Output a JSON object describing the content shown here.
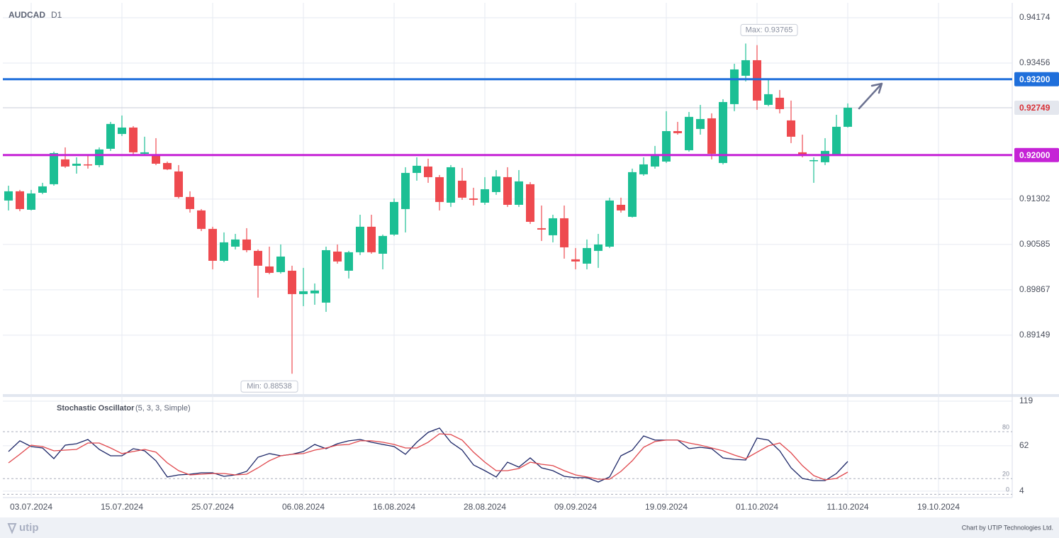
{
  "chart_data": [
    {
      "type": "candlestick",
      "title": "AUDCAD",
      "subtitle": "D1",
      "categories": [
        null,
        null,
        "03.07.2024",
        null,
        null,
        null,
        null,
        null,
        null,
        null,
        "15.07.2024",
        null,
        null,
        null,
        null,
        null,
        null,
        null,
        "25.07.2024",
        null,
        null,
        null,
        null,
        null,
        null,
        null,
        "06.08.2024",
        null,
        null,
        null,
        null,
        null,
        null,
        null,
        "16.08.2024",
        null,
        null,
        null,
        null,
        null,
        null,
        null,
        "28.08.2024",
        null,
        null,
        null,
        null,
        null,
        null,
        null,
        "09.09.2024",
        null,
        null,
        null,
        null,
        null,
        null,
        null,
        "19.09.2024",
        null,
        null,
        null,
        null,
        null,
        null,
        null,
        "01.10.2024",
        null,
        null,
        null,
        null,
        null,
        null,
        null,
        "11.10.2024",
        null,
        null,
        null,
        null,
        null,
        null,
        null,
        "19.10.2024",
        null,
        null,
        null,
        null,
        null,
        null
      ],
      "open": [
        0.9128,
        0.91426,
        0.91134,
        0.91403,
        0.91538,
        0.91931,
        0.9183,
        0.91852,
        0.91841,
        0.92099,
        0.92334,
        0.92435,
        0.9202,
        0.92009,
        0.91874,
        0.9174,
        0.91336,
        0.91123,
        0.90831,
        0.90326,
        0.9055,
        0.90663,
        0.90483,
        0.90236,
        0.90147,
        0.90169,
        0.89799,
        0.8981,
        0.89664,
        0.90472,
        0.90169,
        0.90461,
        0.90865,
        0.90438,
        0.90741,
        0.91145,
        0.91717,
        0.91818,
        0.9165,
        0.91246,
        0.91594,
        0.91313,
        0.91246,
        0.91414,
        0.9165,
        0.91212,
        0.91538,
        0.90842,
        0.9073,
        0.90999,
        0.90349,
        0.90281,
        0.90483,
        0.9055,
        0.91212,
        0.91022,
        0.91695,
        0.91818,
        0.91897,
        0.92379,
        0.92076,
        0.92413,
        0.92581,
        0.91874,
        0.92806,
        0.93255,
        0.93501,
        0.92794,
        0.92907,
        0.92548,
        0.92043,
        0.91908,
        0.91886,
        0.92009,
        0.92447,
        null,
        null,
        null,
        null,
        null,
        null,
        null,
        null,
        null,
        null,
        null,
        null,
        null,
        null
      ],
      "high": [
        0.91515,
        0.91448,
        0.91448,
        0.9156,
        0.92054,
        0.92121,
        0.91964,
        0.92009,
        0.92121,
        0.92525,
        0.92626,
        0.92458,
        0.9229,
        0.92267,
        0.91897,
        0.91841,
        0.91426,
        0.91145,
        0.90865,
        0.90775,
        0.90752,
        0.90842,
        0.90506,
        0.9055,
        0.90584,
        0.90248,
        0.90214,
        0.89967,
        0.9055,
        0.90584,
        0.90483,
        0.91055,
        0.91055,
        0.90741,
        0.91313,
        0.91807,
        0.91964,
        0.91942,
        0.91684,
        0.91841,
        0.91796,
        0.91482,
        0.9165,
        0.91762,
        0.91807,
        0.91762,
        0.91572,
        0.91201,
        0.91055,
        0.91201,
        0.90528,
        0.90663,
        0.90752,
        0.91325,
        0.91325,
        0.91785,
        0.91964,
        0.92144,
        0.92694,
        0.92525,
        0.92682,
        0.92794,
        0.9266,
        0.92884,
        0.93445,
        0.93765,
        0.9374,
        0.93198,
        0.9303,
        0.92862,
        0.92323,
        0.91964,
        0.92267,
        0.92637,
        0.92817,
        null,
        null,
        null,
        null,
        null,
        null,
        null,
        null,
        null,
        null,
        null,
        null,
        null,
        null
      ],
      "low": [
        0.91123,
        0.91111,
        0.91123,
        0.91381,
        0.91515,
        0.91796,
        0.91706,
        0.91785,
        0.91807,
        0.92065,
        0.92301,
        0.92009,
        0.92009,
        0.91841,
        0.91762,
        0.91313,
        0.91089,
        0.90797,
        0.90191,
        0.90304,
        0.90506,
        0.90461,
        0.89743,
        0.90113,
        0.90124,
        0.88538,
        0.89608,
        0.8963,
        0.89518,
        0.90281,
        0.90046,
        0.90416,
        0.90438,
        0.90191,
        0.90719,
        0.90775,
        0.91594,
        0.9156,
        0.91123,
        0.91179,
        0.91291,
        0.91201,
        0.91212,
        0.9137,
        0.91179,
        0.91179,
        0.9091,
        0.9064,
        0.90618,
        0.9036,
        0.90191,
        0.90191,
        0.90214,
        0.90528,
        0.91089,
        0.91011,
        0.91672,
        0.91785,
        0.91874,
        0.92323,
        0.92054,
        0.92323,
        0.91931,
        0.91852,
        0.92694,
        0.93165,
        0.92716,
        0.92772,
        0.9266,
        0.92189,
        0.91964,
        0.9156,
        0.91841,
        0.91987,
        0.92435,
        null,
        null,
        null,
        null,
        null,
        null,
        null,
        null,
        null,
        null,
        null,
        null,
        null,
        null
      ],
      "close": [
        0.91426,
        0.91145,
        0.91392,
        0.91504,
        0.92031,
        0.91818,
        0.91863,
        0.91841,
        0.92088,
        0.92492,
        0.92435,
        0.92043,
        0.92043,
        0.91863,
        0.91773,
        0.91336,
        0.91145,
        0.90831,
        0.90326,
        0.90618,
        0.90663,
        0.90494,
        0.90248,
        0.90135,
        0.90393,
        0.89799,
        0.89844,
        0.89855,
        0.90494,
        0.90315,
        0.90461,
        0.90865,
        0.90461,
        0.90719,
        0.91257,
        0.91717,
        0.9183,
        0.9165,
        0.91257,
        0.91807,
        0.91325,
        0.91291,
        0.91459,
        0.91661,
        0.91212,
        0.91583,
        0.90943,
        0.9082,
        0.90999,
        0.90539,
        0.90315,
        0.90528,
        0.90584,
        0.9128,
        0.91123,
        0.91729,
        0.91852,
        0.92009,
        0.92379,
        0.92346,
        0.92604,
        0.9257,
        0.9202,
        0.92839,
        0.93355,
        0.93501,
        0.92862,
        0.92963,
        0.92727,
        0.9229,
        0.92009,
        0.91919,
        0.92065,
        0.92447,
        0.92749,
        null,
        null,
        null,
        null,
        null,
        null,
        null,
        null,
        null,
        null,
        null,
        null,
        null,
        null
      ],
      "up_color": "#1cbf94",
      "down_color": "#ee4a4f",
      "ylim": [
        0.88227,
        0.94398
      ],
      "yticks": [
        0.94174,
        0.93456,
        0.91302,
        0.90585,
        0.89867,
        0.89149
      ],
      "grid": true,
      "levels": [
        {
          "value": 0.932,
          "label": "0.93200",
          "color": "#1f6fdb"
        },
        {
          "value": 0.92,
          "label": "0.92000",
          "color": "#c523d6"
        }
      ],
      "current_price": 0.92749,
      "max_label": "Max: 0.93765",
      "min_label": "Min: 0.88538"
    },
    {
      "type": "line",
      "title": "Stochastic Oscillator",
      "subtitle": "(5, 3, 3, Simple)",
      "series": [
        {
          "color": "#1b2566",
          "values": [
            54.7,
            68.3,
            61.0,
            59.2,
            45.6,
            62.8,
            64.6,
            70.1,
            57.4,
            49.2,
            49.2,
            58.3,
            55.6,
            42.9,
            22.1,
            24.8,
            25.7,
            27.5,
            27.5,
            23.0,
            24.8,
            29.3,
            47.4,
            52.0,
            49.2,
            51.1,
            54.7,
            63.7,
            58.3,
            64.6,
            68.3,
            70.1,
            66.5,
            63.7,
            61.0,
            51.1,
            66.5,
            79.1,
            84.6,
            66.5,
            56.5,
            37.5,
            30.2,
            22.1,
            41.1,
            34.7,
            46.5,
            33.8,
            30.2,
            23.0,
            21.2,
            21.2,
            15.7,
            22.1,
            49.2,
            56.5,
            74.6,
            69.2,
            69.2,
            69.2,
            58.3,
            60.1,
            58.3,
            46.5,
            44.7,
            43.8,
            71.9,
            69.2,
            55.6,
            33.8,
            20.2,
            17.5,
            17.5,
            26.6,
            42.0,
            null,
            null,
            null,
            null,
            null,
            null,
            null,
            null,
            null,
            null,
            null,
            null,
            null,
            null
          ]
        },
        {
          "color": "#e0474c",
          "values": [
            40.2,
            51.1,
            62.8,
            61.0,
            55.6,
            56.5,
            57.4,
            65.5,
            65.5,
            59.2,
            52.0,
            54.7,
            57.4,
            53.8,
            40.2,
            30.2,
            24.8,
            25.7,
            26.6,
            26.6,
            24.8,
            25.7,
            33.8,
            42.9,
            49.2,
            51.1,
            52.0,
            56.5,
            59.2,
            62.8,
            63.7,
            68.3,
            68.3,
            66.5,
            63.7,
            59.2,
            59.2,
            66.5,
            77.3,
            76.4,
            69.2,
            53.8,
            41.1,
            30.2,
            30.2,
            32.9,
            41.1,
            38.4,
            36.6,
            30.2,
            24.8,
            22.1,
            19.3,
            19.3,
            29.3,
            42.9,
            60.1,
            67.4,
            69.2,
            69.2,
            65.5,
            62.8,
            59.2,
            55.6,
            50.1,
            45.6,
            53.8,
            61.9,
            65.5,
            52.9,
            36.6,
            23.9,
            18.4,
            20.2,
            28.4,
            null,
            null,
            null,
            null,
            null,
            null,
            null,
            null,
            null,
            null,
            null,
            null,
            null,
            null
          ]
        }
      ],
      "ylim": [
        -2.4,
        124.4
      ],
      "yticks": [
        119,
        62,
        4
      ],
      "bands": [
        80,
        20,
        0
      ]
    }
  ],
  "footer": {
    "logo": "utip",
    "credit": "Chart by UTIP Technologies Ltd."
  }
}
